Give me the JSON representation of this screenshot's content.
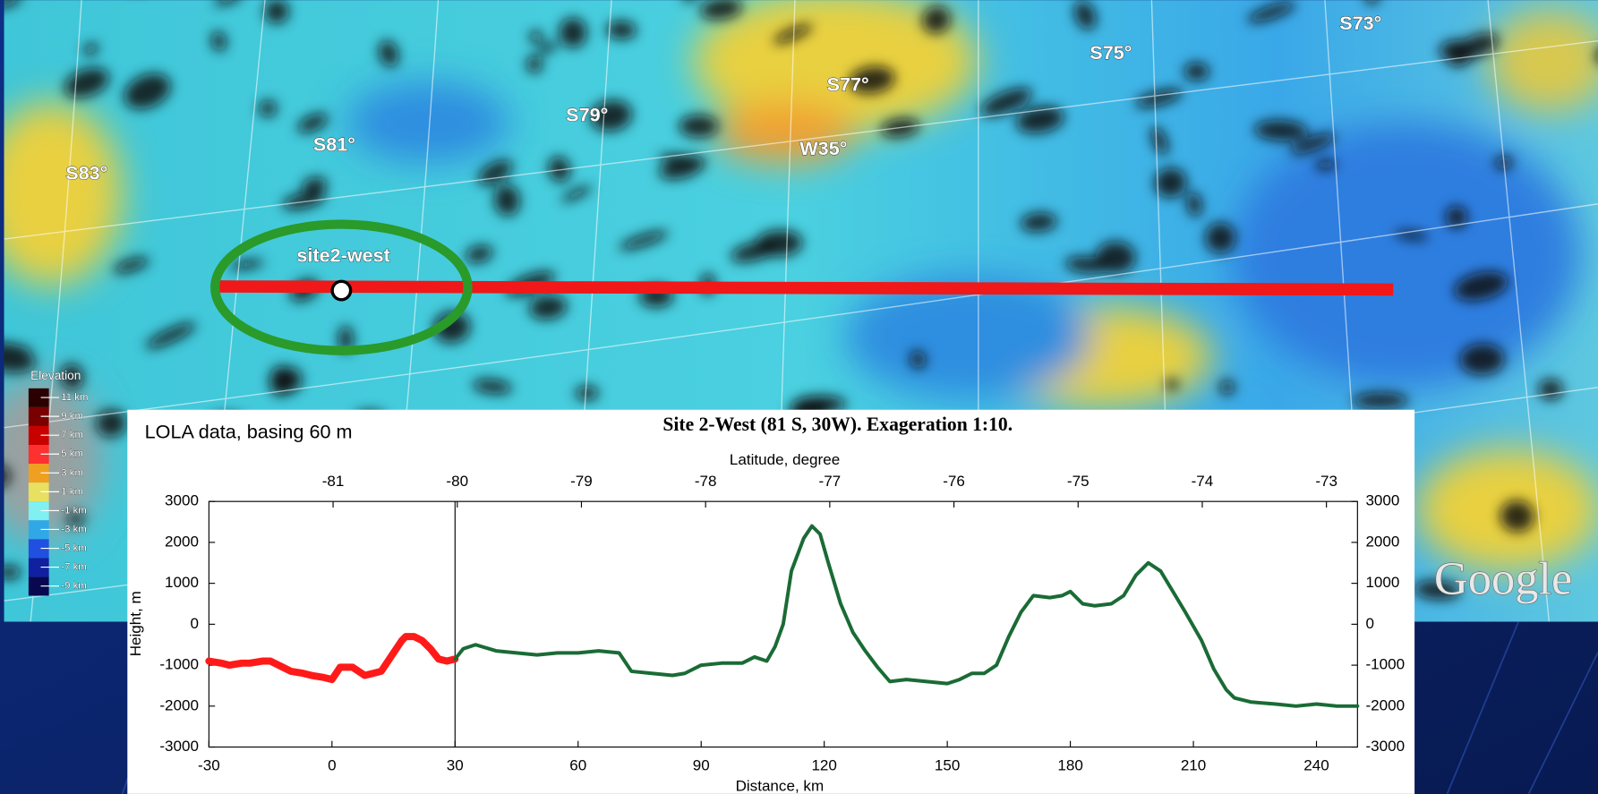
{
  "map": {
    "grid_labels": [
      "S83°",
      "S81°",
      "S79°",
      "S77°",
      "W35°",
      "S75°",
      "S73°"
    ],
    "site_label": "site2-west",
    "legend": {
      "title": "Elevation",
      "labels": [
        "11 km",
        "9 km",
        "7 km",
        "5 km",
        "3 km",
        "1 km",
        "-1 km",
        "-3 km",
        "-5 km",
        "-7 km",
        "-9 km"
      ]
    },
    "logo": "Google"
  },
  "chart_data": {
    "type": "line",
    "title": "Site 2-West (81 S, 30W). Exageration 1:10.",
    "note": "LOLA data, basing 60 m",
    "x_label": "Distance, km",
    "x2_label": "Latitude, degree",
    "y_label": "Height, m",
    "xlim": [
      -30,
      250
    ],
    "xticks": [
      -30,
      0,
      30,
      60,
      90,
      120,
      150,
      180,
      210,
      240
    ],
    "x2lim": [
      -82,
      -72.75
    ],
    "x2ticks": [
      -81,
      -80,
      -79,
      -78,
      -77,
      -76,
      -75,
      -74,
      -73
    ],
    "ylim": [
      -3000,
      3000
    ],
    "yticks": [
      -3000,
      -2000,
      -1000,
      0,
      1000,
      2000,
      3000
    ],
    "y2lim": [
      -3000,
      3000
    ],
    "y2ticks": [
      -3000,
      -2000,
      -1000,
      0,
      1000,
      2000,
      3000
    ],
    "vline": 30,
    "series": [
      {
        "color": "#ff1a1a",
        "x": [
          -30,
          -27,
          -25,
          -22,
          -20,
          -17,
          -15,
          -12,
          -10,
          -7,
          -5,
          -2,
          0,
          2,
          5,
          8,
          10,
          12,
          15,
          17,
          18,
          20,
          22,
          24,
          26,
          28,
          30
        ],
        "values": [
          -900,
          -950,
          -1000,
          -950,
          -950,
          -900,
          -900,
          -1050,
          -1150,
          -1200,
          -1250,
          -1300,
          -1350,
          -1050,
          -1050,
          -1250,
          -1200,
          -1150,
          -700,
          -400,
          -300,
          -300,
          -400,
          -600,
          -850,
          -900,
          -850
        ]
      },
      {
        "color": "#1a6b35",
        "x": [
          30,
          32,
          35,
          40,
          45,
          50,
          55,
          60,
          65,
          70,
          73,
          78,
          83,
          86,
          90,
          95,
          100,
          103,
          106,
          108,
          110,
          112,
          115,
          117,
          119,
          121,
          124,
          127,
          130,
          133,
          136,
          140,
          145,
          150,
          153,
          156,
          159,
          162,
          165,
          168,
          171,
          175,
          178,
          180,
          183,
          186,
          190,
          193,
          196,
          199,
          202,
          205,
          208,
          212,
          215,
          218,
          220,
          224,
          230,
          235,
          240,
          245,
          250
        ],
        "values": [
          -850,
          -600,
          -500,
          -650,
          -700,
          -750,
          -700,
          -700,
          -650,
          -700,
          -1150,
          -1200,
          -1250,
          -1200,
          -1000,
          -950,
          -950,
          -800,
          -900,
          -550,
          0,
          1300,
          2100,
          2400,
          2200,
          1500,
          500,
          -200,
          -650,
          -1050,
          -1400,
          -1350,
          -1400,
          -1450,
          -1350,
          -1200,
          -1200,
          -1000,
          -300,
          300,
          700,
          650,
          700,
          800,
          500,
          450,
          500,
          700,
          1200,
          1500,
          1300,
          800,
          300,
          -400,
          -1100,
          -1600,
          -1800,
          -1900,
          -1950,
          -2000,
          -1950,
          -2000,
          -2000
        ]
      }
    ]
  }
}
